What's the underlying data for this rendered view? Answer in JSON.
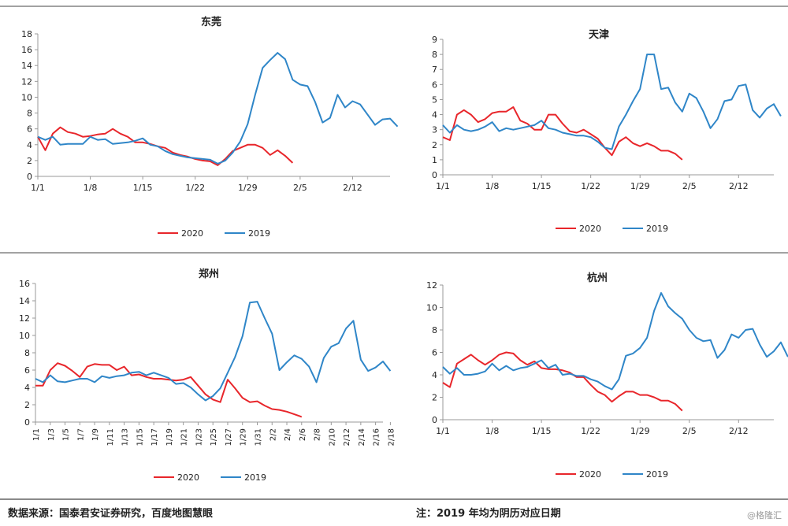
{
  "colors": {
    "series_2020": "#e8262b",
    "series_2019": "#2f86c8",
    "axis": "#999999",
    "text": "#222222"
  },
  "footer": {
    "source": "数据来源：国泰君安证券研究，百度地图慧眼",
    "note": "注：2019 年均为阴历对应日期",
    "watermark": "@格隆汇"
  },
  "chart_data": [
    {
      "type": "line",
      "title": "东莞",
      "ylim": [
        0,
        18
      ],
      "yticks": [
        0,
        2,
        4,
        6,
        8,
        10,
        12,
        14,
        16,
        18
      ],
      "xlim": [
        1,
        48
      ],
      "x_tick_labels": [
        "1/1",
        "1/8",
        "1/15",
        "1/22",
        "1/29",
        "2/5",
        "2/12"
      ],
      "legend": [
        "2020",
        "2019"
      ],
      "series": [
        {
          "name": "2020",
          "x_start": 1,
          "values": [
            5,
            3.3,
            5.4,
            6.2,
            5.6,
            5.4,
            5,
            5.1,
            5.3,
            5.4,
            6,
            5.4,
            5,
            4.3,
            4.3,
            4.1,
            3.8,
            3.6,
            3,
            2.7,
            2.5,
            2.2,
            2,
            1.9,
            1.4,
            2.2,
            3.2,
            3.6,
            4,
            4,
            3.6,
            2.7,
            3.3,
            2.6,
            1.7
          ]
        },
        {
          "name": "2019",
          "x_start": 1,
          "values": [
            5,
            4.6,
            5,
            4,
            4.1,
            4.1,
            4.1,
            5,
            4.6,
            4.7,
            4.1,
            4.2,
            4.3,
            4.5,
            4.8,
            4,
            3.8,
            3.2,
            2.8,
            2.6,
            2.4,
            2.3,
            2.2,
            2.1,
            1.6,
            2,
            3,
            4.4,
            6.6,
            10.3,
            13.7,
            14.7,
            15.6,
            14.8,
            12.2,
            11.6,
            11.4,
            9.4,
            6.8,
            7.4,
            10.3,
            8.7,
            9.5,
            9.1,
            7.8,
            6.5,
            7.2,
            7.3,
            6.3
          ]
        }
      ]
    },
    {
      "type": "line",
      "title": "天津",
      "ylim": [
        0,
        9
      ],
      "yticks": [
        0,
        1,
        2,
        3,
        4,
        5,
        6,
        7,
        8,
        9
      ],
      "xlim": [
        1,
        48
      ],
      "x_tick_labels": [
        "1/1",
        "1/8",
        "1/15",
        "1/22",
        "1/29",
        "2/5",
        "2/12"
      ],
      "legend": [
        "2020",
        "2019"
      ],
      "series": [
        {
          "name": "2020",
          "x_start": 1,
          "values": [
            2.5,
            2.3,
            4,
            4.3,
            4,
            3.5,
            3.7,
            4.1,
            4.2,
            4.2,
            4.5,
            3.6,
            3.4,
            3,
            3,
            4,
            4,
            3.4,
            2.9,
            2.8,
            3,
            2.7,
            2.4,
            1.8,
            1.3,
            2.2,
            2.5,
            2.1,
            1.9,
            2.1,
            1.9,
            1.6,
            1.6,
            1.4,
            1
          ]
        },
        {
          "name": "2019",
          "x_start": 1,
          "values": [
            3.3,
            2.8,
            3.3,
            3,
            2.9,
            3,
            3.2,
            3.5,
            2.9,
            3.1,
            3,
            3.1,
            3.2,
            3.3,
            3.6,
            3.1,
            3,
            2.8,
            2.7,
            2.6,
            2.6,
            2.5,
            2.2,
            1.8,
            1.7,
            3.2,
            4,
            4.9,
            5.7,
            8,
            8,
            5.7,
            5.8,
            4.8,
            4.2,
            5.4,
            5.1,
            4.2,
            3.1,
            3.7,
            4.9,
            5,
            5.9,
            6,
            4.3,
            3.8,
            4.4,
            4.7,
            3.9
          ]
        }
      ]
    },
    {
      "type": "line",
      "title": "郑州",
      "ylim": [
        0,
        16
      ],
      "yticks": [
        0,
        2,
        4,
        6,
        8,
        10,
        12,
        14,
        16
      ],
      "xlim": [
        1,
        48
      ],
      "x_tick_labels": [
        "1/1",
        "1/3",
        "1/5",
        "1/7",
        "1/9",
        "1/11",
        "1/13",
        "1/15",
        "1/17",
        "1/19",
        "1/21",
        "1/23",
        "1/25",
        "1/27",
        "1/29",
        "1/31",
        "2/2",
        "2/4",
        "2/6",
        "2/8",
        "2/10",
        "2/12",
        "2/14",
        "2/16",
        "2/18"
      ],
      "legend": [
        "2020",
        "2019"
      ],
      "series": [
        {
          "name": "2020",
          "x_start": 1,
          "values": [
            4.2,
            4.2,
            6,
            6.8,
            6.5,
            5.9,
            5.2,
            6.4,
            6.7,
            6.6,
            6.6,
            6,
            6.4,
            5.4,
            5.5,
            5.2,
            5,
            5,
            4.9,
            4.8,
            4.9,
            5.2,
            4.2,
            3.2,
            2.6,
            2.3,
            4.9,
            3.9,
            2.8,
            2.3,
            2.4,
            1.9,
            1.5,
            1.4,
            1.2,
            0.9,
            0.6
          ]
        },
        {
          "name": "2019",
          "x_start": 1,
          "values": [
            5,
            4.6,
            5.4,
            4.7,
            4.6,
            4.8,
            5,
            5,
            4.6,
            5.3,
            5.1,
            5.3,
            5.4,
            5.7,
            5.8,
            5.4,
            5.7,
            5.4,
            5.1,
            4.4,
            4.5,
            4,
            3.2,
            2.5,
            3,
            3.9,
            5.7,
            7.5,
            9.9,
            13.8,
            13.9,
            12,
            10.2,
            6,
            6.9,
            7.7,
            7.3,
            6.4,
            4.6,
            7.4,
            8.7,
            9.1,
            10.8,
            11.7,
            7.2,
            5.9,
            6.3,
            7,
            5.9
          ]
        }
      ]
    },
    {
      "type": "line",
      "title": "杭州",
      "ylim": [
        0,
        12
      ],
      "yticks": [
        0,
        2,
        4,
        6,
        8,
        10,
        12
      ],
      "xlim": [
        1,
        48
      ],
      "x_tick_labels": [
        "1/1",
        "1/8",
        "1/15",
        "1/22",
        "1/29",
        "2/5",
        "2/12"
      ],
      "legend": [
        "2020",
        "2019"
      ],
      "series": [
        {
          "name": "2020",
          "x_start": 1,
          "values": [
            3.3,
            2.9,
            5,
            5.4,
            5.8,
            5.3,
            4.9,
            5.3,
            5.8,
            6,
            5.9,
            5.3,
            4.9,
            5.2,
            4.6,
            4.5,
            4.5,
            4.4,
            4.2,
            3.8,
            3.8,
            3.1,
            2.5,
            2.2,
            1.6,
            2.1,
            2.5,
            2.5,
            2.2,
            2.2,
            2,
            1.7,
            1.7,
            1.4,
            0.8
          ]
        },
        {
          "name": "2019",
          "x_start": 1,
          "values": [
            4.7,
            4.1,
            4.6,
            4,
            4,
            4.1,
            4.3,
            5,
            4.4,
            4.8,
            4.4,
            4.6,
            4.7,
            5,
            5.3,
            4.6,
            4.9,
            4,
            4.1,
            3.9,
            3.9,
            3.6,
            3.4,
            3,
            2.7,
            3.6,
            5.7,
            5.9,
            6.4,
            7.3,
            9.7,
            11.3,
            10.1,
            9.5,
            9,
            8,
            7.3,
            7,
            7.1,
            5.5,
            6.2,
            7.6,
            7.3,
            8,
            8.1,
            6.7,
            5.6,
            6.1,
            6.9,
            5.6
          ]
        }
      ]
    }
  ]
}
